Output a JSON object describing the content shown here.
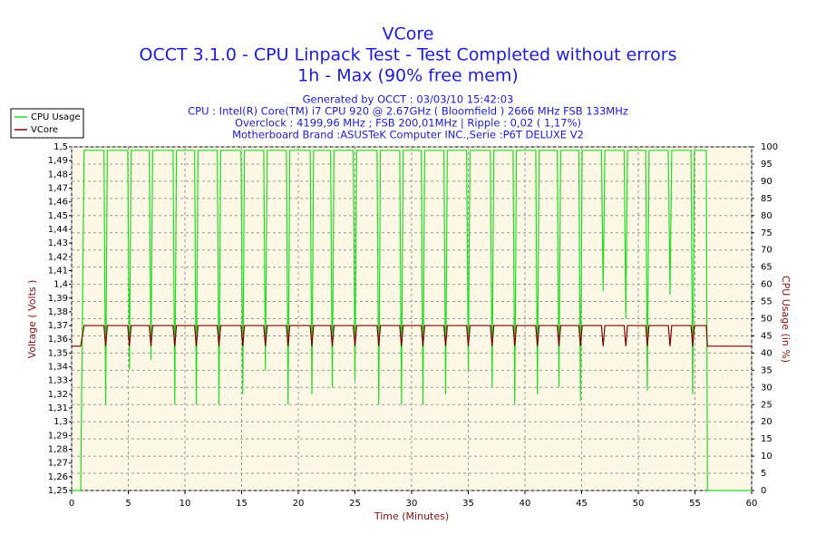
{
  "chart_data": {
    "type": "line",
    "title": [
      "VCore",
      "OCCT 3.1.0 - CPU Linpack Test - Test Completed without errors",
      "1h - Max (90% free mem)"
    ],
    "subtitle": [
      "Generated by OCCT : 03/03/10 15:42:03",
      "CPU : Intel(R) Core(TM) i7 CPU 920 @ 2.67GHz ( Bloomfield ) 2666 MHz FSB 133MHz",
      "Overclock : 4199,96 MHz ; FSB 200,01MHz | Ripple : 0,02 ( 1,17%)",
      "Motherboard Brand :ASUSTeK Computer INC.,Serie :P6T DELUXE V2"
    ],
    "xlabel": "Time (Minutes)",
    "ylabel": "Voltage ( Volts )",
    "y2label": "CPU Usage (in %)",
    "x": [
      0,
      0.8,
      1.1,
      2.85,
      3.0,
      3.15,
      4.95,
      5.1,
      5.25,
      6.85,
      7.0,
      7.15,
      8.95,
      9.1,
      9.25,
      10.85,
      11.0,
      11.15,
      12.85,
      13.0,
      13.15,
      14.95,
      15.1,
      15.25,
      16.95,
      17.1,
      17.25,
      18.95,
      19.1,
      19.25,
      21.05,
      21.2,
      21.35,
      22.85,
      23.0,
      23.15,
      24.85,
      25.0,
      25.15,
      26.95,
      27.1,
      27.25,
      28.95,
      29.1,
      29.25,
      30.85,
      31.0,
      31.15,
      32.85,
      33.0,
      33.15,
      34.85,
      35.0,
      35.15,
      36.95,
      37.1,
      37.25,
      38.95,
      39.1,
      39.25,
      40.95,
      41.1,
      41.25,
      42.85,
      43.0,
      43.15,
      44.75,
      44.9,
      45.05,
      46.75,
      46.9,
      47.05,
      48.75,
      48.9,
      49.05,
      50.65,
      50.8,
      50.95,
      52.65,
      52.8,
      52.95,
      54.65,
      54.8,
      54.95,
      56.0,
      56.1,
      60
    ],
    "series": [
      {
        "name": "CPU Usage",
        "color": "#22dd22",
        "axis": "y2",
        "values": [
          0,
          0,
          99,
          99,
          25,
          99,
          99,
          35,
          99,
          99,
          38,
          99,
          99,
          25,
          99,
          99,
          25,
          99,
          99,
          25,
          99,
          99,
          28,
          99,
          99,
          35,
          99,
          99,
          25,
          99,
          99,
          28,
          99,
          99,
          30,
          99,
          99,
          32,
          99,
          99,
          25,
          99,
          99,
          25,
          99,
          99,
          25,
          99,
          99,
          28,
          99,
          99,
          35,
          99,
          99,
          30,
          99,
          99,
          25,
          99,
          99,
          28,
          99,
          99,
          30,
          99,
          99,
          26,
          99,
          99,
          58,
          99,
          99,
          50,
          99,
          99,
          29,
          99,
          99,
          57,
          99,
          99,
          28,
          99,
          99,
          0,
          0
        ]
      },
      {
        "name": "VCore",
        "color": "#800000",
        "values": [
          1.355,
          1.355,
          1.37,
          1.37,
          1.355,
          1.37,
          1.37,
          1.355,
          1.37,
          1.37,
          1.355,
          1.37,
          1.37,
          1.355,
          1.37,
          1.37,
          1.355,
          1.37,
          1.37,
          1.355,
          1.37,
          1.37,
          1.355,
          1.37,
          1.37,
          1.355,
          1.37,
          1.37,
          1.355,
          1.37,
          1.37,
          1.355,
          1.37,
          1.37,
          1.355,
          1.37,
          1.37,
          1.355,
          1.37,
          1.37,
          1.355,
          1.37,
          1.37,
          1.355,
          1.37,
          1.37,
          1.355,
          1.37,
          1.37,
          1.355,
          1.37,
          1.37,
          1.355,
          1.37,
          1.37,
          1.355,
          1.37,
          1.37,
          1.355,
          1.37,
          1.37,
          1.355,
          1.37,
          1.37,
          1.355,
          1.37,
          1.37,
          1.355,
          1.37,
          1.37,
          1.355,
          1.37,
          1.37,
          1.355,
          1.37,
          1.37,
          1.355,
          1.37,
          1.37,
          1.355,
          1.37,
          1.37,
          1.355,
          1.37,
          1.37,
          1.355,
          1.355
        ]
      }
    ],
    "xlim": [
      0,
      60
    ],
    "xticks": [
      0,
      5,
      10,
      15,
      20,
      25,
      30,
      35,
      40,
      45,
      50,
      55,
      60
    ],
    "ylim": [
      1.25,
      1.5
    ],
    "yticks": [
      {
        "value": 1.25,
        "label": "1,25"
      },
      {
        "value": 1.26,
        "label": "1,26"
      },
      {
        "value": 1.27,
        "label": "1,27"
      },
      {
        "value": 1.28,
        "label": "1,28"
      },
      {
        "value": 1.29,
        "label": "1,29"
      },
      {
        "value": 1.3,
        "label": "1,3"
      },
      {
        "value": 1.31,
        "label": "1,31"
      },
      {
        "value": 1.32,
        "label": "1,32"
      },
      {
        "value": 1.33,
        "label": "1,33"
      },
      {
        "value": 1.34,
        "label": "1,34"
      },
      {
        "value": 1.35,
        "label": "1,35"
      },
      {
        "value": 1.36,
        "label": "1,36"
      },
      {
        "value": 1.37,
        "label": "1,37"
      },
      {
        "value": 1.38,
        "label": "1,38"
      },
      {
        "value": 1.39,
        "label": "1,39"
      },
      {
        "value": 1.4,
        "label": "1,4"
      },
      {
        "value": 1.41,
        "label": "1,41"
      },
      {
        "value": 1.42,
        "label": "1,42"
      },
      {
        "value": 1.43,
        "label": "1,43"
      },
      {
        "value": 1.44,
        "label": "1,44"
      },
      {
        "value": 1.45,
        "label": "1,45"
      },
      {
        "value": 1.46,
        "label": "1,46"
      },
      {
        "value": 1.47,
        "label": "1,47"
      },
      {
        "value": 1.48,
        "label": "1,48"
      },
      {
        "value": 1.49,
        "label": "1,49"
      },
      {
        "value": 1.5,
        "label": "1,5"
      }
    ],
    "y2lim": [
      0,
      100
    ],
    "y2ticks": [
      0,
      5,
      10,
      15,
      20,
      25,
      30,
      35,
      40,
      45,
      50,
      55,
      60,
      65,
      70,
      75,
      80,
      85,
      90,
      95,
      100
    ],
    "grid": true,
    "legend": "top-left"
  }
}
